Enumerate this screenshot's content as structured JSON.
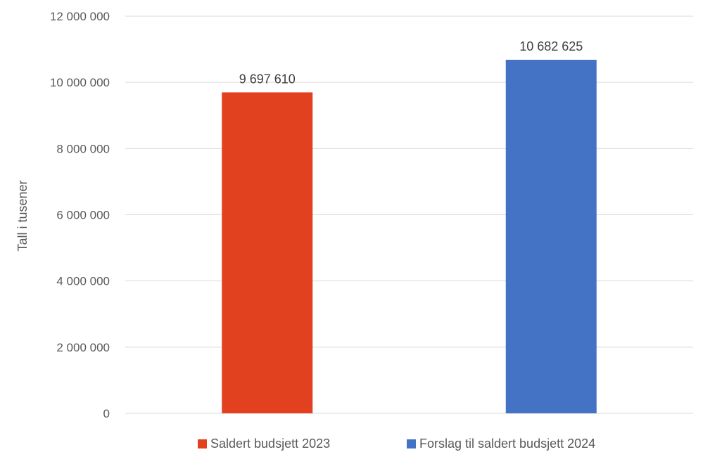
{
  "chart_data": {
    "type": "bar",
    "categories": [
      "Saldert budsjett 2023",
      "Forslag til saldert budsjett 2024"
    ],
    "series": [
      {
        "name": "Saldert budsjett 2023",
        "values": [
          9697610,
          null
        ],
        "color": "#e2411f",
        "data_label": "9 697 610"
      },
      {
        "name": "Forslag til saldert budsjett 2024",
        "values": [
          null,
          10682625
        ],
        "color": "#4472c4",
        "data_label": "10 682 625"
      }
    ],
    "title": "",
    "xlabel": "",
    "ylabel": "Tall i tusener",
    "ylim": [
      0,
      12000000
    ],
    "yticks": [
      0,
      2000000,
      4000000,
      6000000,
      8000000,
      10000000,
      12000000
    ],
    "ytick_labels": [
      "0",
      "2 000 000",
      "4 000 000",
      "6 000 000",
      "8 000 000",
      "10 000 000",
      "12 000 000"
    ],
    "grid": true,
    "legend": {
      "position": "bottom",
      "entries": [
        "Saldert budsjett 2023",
        "Forslag til saldert budsjett 2024"
      ]
    }
  }
}
